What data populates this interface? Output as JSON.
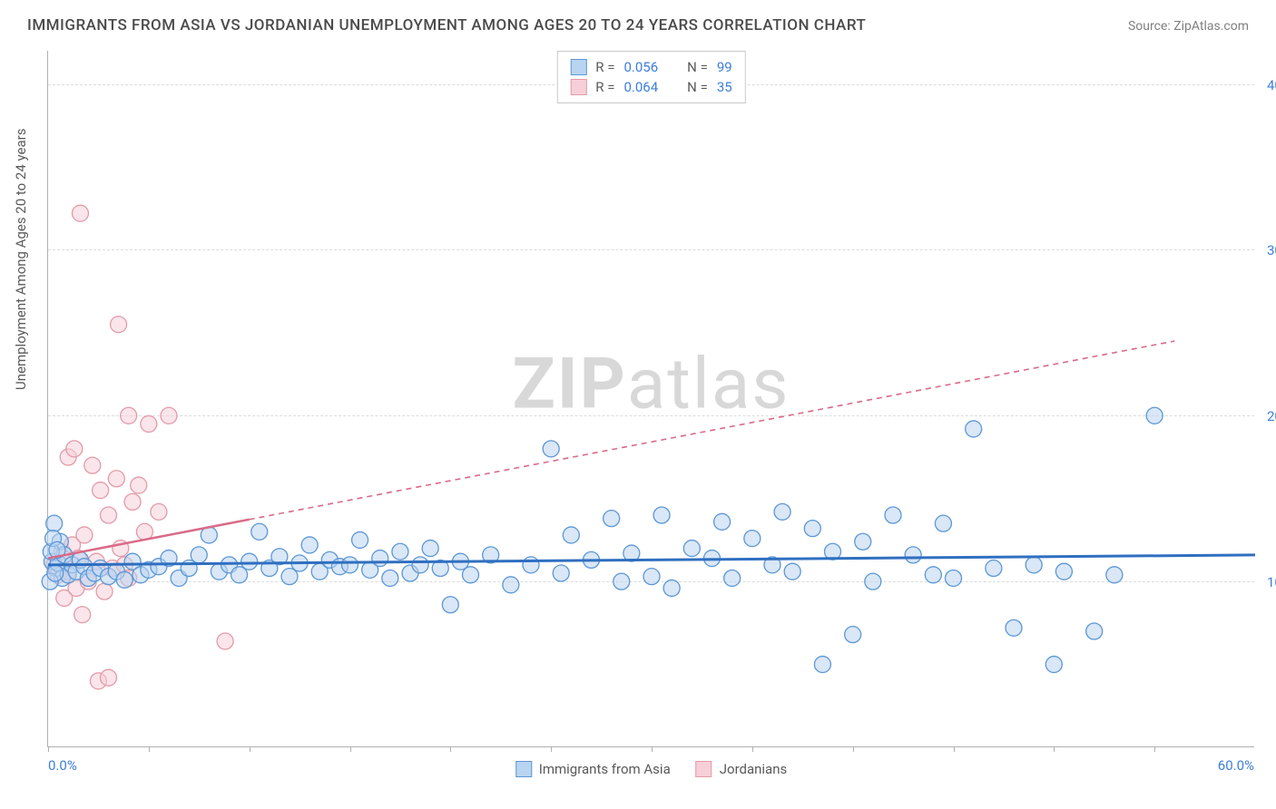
{
  "title": "IMMIGRANTS FROM ASIA VS JORDANIAN UNEMPLOYMENT AMONG AGES 20 TO 24 YEARS CORRELATION CHART",
  "source": "Source: ZipAtlas.com",
  "yaxis_title": "Unemployment Among Ages 20 to 24 years",
  "watermark": {
    "bold": "ZIP",
    "rest": "atlas"
  },
  "chart": {
    "type": "scatter",
    "xlim": [
      0,
      60
    ],
    "ylim": [
      0,
      42
    ],
    "x_min_label": "0.0%",
    "x_max_label": "60.0%",
    "x_ticks": [
      0,
      5,
      10,
      15,
      20,
      25,
      30,
      35,
      40,
      45,
      50,
      55
    ],
    "y_ticks": [
      {
        "v": 10,
        "label": "10.0%"
      },
      {
        "v": 20,
        "label": "20.0%"
      },
      {
        "v": 30,
        "label": "30.0%"
      },
      {
        "v": 40,
        "label": "40.0%"
      }
    ],
    "grid_color": "#dcdcdc",
    "axis_color": "#b0b0b0",
    "marker_radius": 9,
    "marker_opacity": 0.55,
    "series": [
      {
        "name": "Immigrants from Asia",
        "fill": "#b9d4f0",
        "stroke": "#5c97d6",
        "line_color": "#2f6fc0",
        "line_dash": "none",
        "r_label": "R =",
        "r_value": "0.056",
        "n_label": "N =",
        "n_value": "99",
        "trend": {
          "x1": 0,
          "y1": 11.0,
          "x2": 60,
          "y2": 11.6
        },
        "points": [
          [
            0.2,
            11.2
          ],
          [
            0.3,
            13.5
          ],
          [
            0.4,
            10.8
          ],
          [
            0.5,
            11.1
          ],
          [
            0.6,
            12.4
          ],
          [
            0.7,
            10.2
          ],
          [
            0.8,
            11.6
          ],
          [
            1.0,
            10.4
          ],
          [
            1.2,
            11.0
          ],
          [
            1.4,
            10.6
          ],
          [
            1.6,
            11.3
          ],
          [
            1.8,
            10.9
          ],
          [
            2.0,
            10.2
          ],
          [
            2.3,
            10.5
          ],
          [
            2.6,
            10.8
          ],
          [
            3.0,
            10.3
          ],
          [
            3.4,
            10.6
          ],
          [
            3.8,
            10.1
          ],
          [
            4.2,
            11.2
          ],
          [
            4.6,
            10.4
          ],
          [
            5.0,
            10.7
          ],
          [
            5.5,
            10.9
          ],
          [
            6.0,
            11.4
          ],
          [
            6.5,
            10.2
          ],
          [
            7.0,
            10.8
          ],
          [
            7.5,
            11.6
          ],
          [
            8.0,
            12.8
          ],
          [
            8.5,
            10.6
          ],
          [
            9.0,
            11.0
          ],
          [
            9.5,
            10.4
          ],
          [
            10.0,
            11.2
          ],
          [
            10.5,
            13.0
          ],
          [
            11.0,
            10.8
          ],
          [
            11.5,
            11.5
          ],
          [
            12.0,
            10.3
          ],
          [
            12.5,
            11.1
          ],
          [
            13.0,
            12.2
          ],
          [
            13.5,
            10.6
          ],
          [
            14.0,
            11.3
          ],
          [
            14.5,
            10.9
          ],
          [
            15.0,
            11.0
          ],
          [
            15.5,
            12.5
          ],
          [
            16.0,
            10.7
          ],
          [
            16.5,
            11.4
          ],
          [
            17.0,
            10.2
          ],
          [
            17.5,
            11.8
          ],
          [
            18.0,
            10.5
          ],
          [
            18.5,
            11.0
          ],
          [
            19.0,
            12.0
          ],
          [
            19.5,
            10.8
          ],
          [
            20.0,
            8.6
          ],
          [
            20.5,
            11.2
          ],
          [
            21.0,
            10.4
          ],
          [
            22.0,
            11.6
          ],
          [
            23.0,
            9.8
          ],
          [
            24.0,
            11.0
          ],
          [
            25.0,
            18.0
          ],
          [
            25.5,
            10.5
          ],
          [
            26.0,
            12.8
          ],
          [
            27.0,
            11.3
          ],
          [
            28.0,
            13.8
          ],
          [
            28.5,
            10.0
          ],
          [
            29.0,
            11.7
          ],
          [
            30.0,
            10.3
          ],
          [
            30.5,
            14.0
          ],
          [
            31.0,
            9.6
          ],
          [
            32.0,
            12.0
          ],
          [
            33.0,
            11.4
          ],
          [
            33.5,
            13.6
          ],
          [
            34.0,
            10.2
          ],
          [
            35.0,
            12.6
          ],
          [
            36.0,
            11.0
          ],
          [
            36.5,
            14.2
          ],
          [
            37.0,
            10.6
          ],
          [
            38.0,
            13.2
          ],
          [
            38.5,
            5.0
          ],
          [
            39.0,
            11.8
          ],
          [
            40.0,
            6.8
          ],
          [
            40.5,
            12.4
          ],
          [
            41.0,
            10.0
          ],
          [
            42.0,
            14.0
          ],
          [
            43.0,
            11.6
          ],
          [
            44.0,
            10.4
          ],
          [
            44.5,
            13.5
          ],
          [
            45.0,
            10.2
          ],
          [
            46.0,
            19.2
          ],
          [
            47.0,
            10.8
          ],
          [
            48.0,
            7.2
          ],
          [
            49.0,
            11.0
          ],
          [
            50.0,
            5.0
          ],
          [
            50.5,
            10.6
          ],
          [
            52.0,
            7.0
          ],
          [
            53.0,
            10.4
          ],
          [
            55.0,
            20.0
          ],
          [
            0.1,
            10.0
          ],
          [
            0.15,
            11.8
          ],
          [
            0.25,
            12.6
          ],
          [
            0.35,
            10.5
          ],
          [
            0.45,
            11.9
          ]
        ]
      },
      {
        "name": "Jordanians",
        "fill": "#f6cfd8",
        "stroke": "#e39aa9",
        "line_color": "#d96a88",
        "line_dash": "6 5",
        "r_label": "R =",
        "r_value": "0.064",
        "n_label": "N =",
        "n_value": "35",
        "trend": {
          "x1": 0,
          "y1": 11.4,
          "x2": 56,
          "y2": 24.5
        },
        "trend_solid_until": 10,
        "points": [
          [
            0.3,
            11.0
          ],
          [
            0.5,
            10.4
          ],
          [
            0.7,
            11.8
          ],
          [
            0.8,
            9.0
          ],
          [
            1.0,
            10.6
          ],
          [
            1.2,
            12.2
          ],
          [
            1.4,
            9.6
          ],
          [
            1.5,
            11.4
          ],
          [
            1.7,
            8.0
          ],
          [
            1.8,
            12.8
          ],
          [
            2.0,
            10.0
          ],
          [
            2.2,
            17.0
          ],
          [
            2.4,
            11.2
          ],
          [
            2.6,
            15.5
          ],
          [
            2.8,
            9.4
          ],
          [
            3.0,
            14.0
          ],
          [
            3.2,
            10.8
          ],
          [
            3.4,
            16.2
          ],
          [
            3.6,
            12.0
          ],
          [
            3.8,
            11.0
          ],
          [
            4.0,
            20.0
          ],
          [
            4.2,
            14.8
          ],
          [
            4.5,
            15.8
          ],
          [
            4.8,
            13.0
          ],
          [
            5.0,
            19.5
          ],
          [
            5.5,
            14.2
          ],
          [
            6.0,
            20.0
          ],
          [
            1.6,
            32.2
          ],
          [
            2.5,
            4.0
          ],
          [
            3.0,
            4.2
          ],
          [
            3.5,
            25.5
          ],
          [
            4.0,
            10.2
          ],
          [
            1.0,
            17.5
          ],
          [
            1.3,
            18.0
          ],
          [
            8.8,
            6.4
          ]
        ]
      }
    ]
  }
}
